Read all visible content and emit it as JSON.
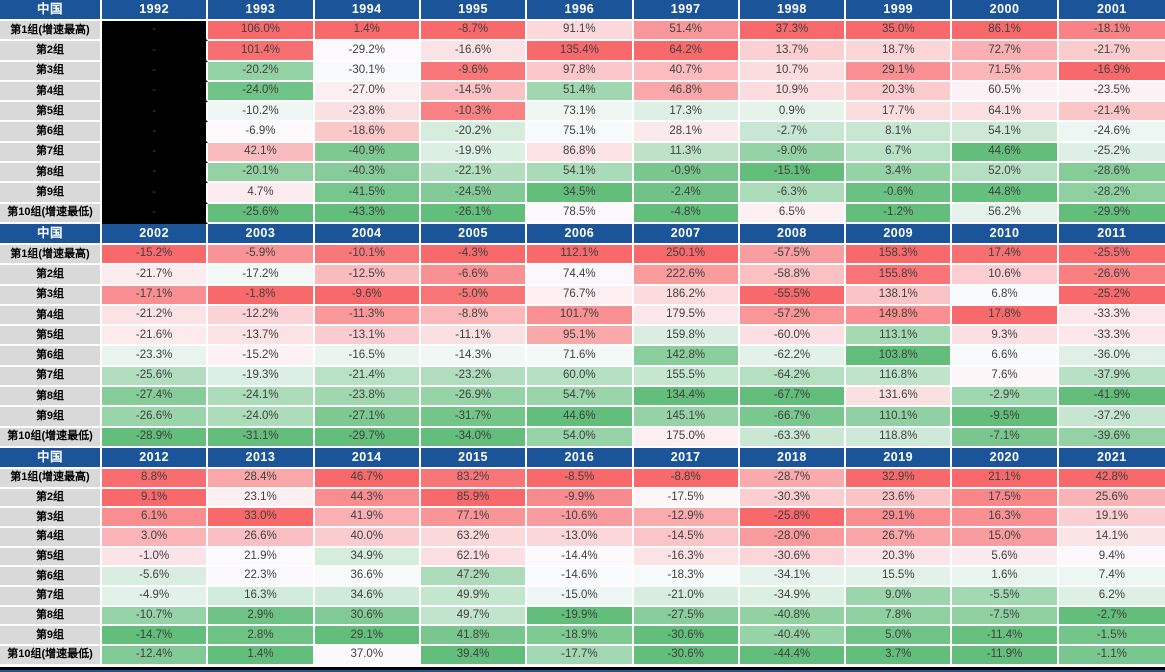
{
  "colors": {
    "header_bg": "#1C5499",
    "header_text": "#FFFFFF",
    "label_bg": "#D9D9D9",
    "label_text": "#000000",
    "grid_line": "#FFFFFF",
    "value_text": "#404040",
    "null_cell_bg": "#000000",
    "null_cell_text": "#4A4A4A",
    "bottom_edge": "#000000",
    "scale_max_red": "#F8696B",
    "scale_mid_white": "#FCFCFF",
    "scale_min_green": "#63BE7B"
  },
  "chart_data": {
    "type": "heatmap",
    "region_header": "中国",
    "unit": "%",
    "null_placeholder": "-",
    "color_scale": {
      "min_color": "#63BE7B",
      "mid_color": "#FCFCFF",
      "max_color": "#F8696B",
      "midpoint": "50th-percentile per column",
      "scope": "per column within each decade section"
    },
    "row_labels": [
      "第1组(增速最高)",
      "第2组",
      "第3组",
      "第4组",
      "第5组",
      "第6组",
      "第7组",
      "第8组",
      "第9组",
      "第10组(增速最低)"
    ],
    "sections": [
      {
        "years": [
          "1992",
          "1993",
          "1994",
          "1995",
          "1996",
          "1997",
          "1998",
          "1999",
          "2000",
          "2001"
        ],
        "values": [
          [
            null,
            106.0,
            1.4,
            -8.7,
            91.1,
            51.4,
            37.3,
            35.0,
            86.1,
            -18.1
          ],
          [
            null,
            101.4,
            -29.2,
            -16.6,
            135.4,
            64.2,
            13.7,
            18.7,
            72.7,
            -21.7
          ],
          [
            null,
            -20.2,
            -30.1,
            -9.6,
            97.8,
            40.7,
            10.7,
            29.1,
            71.5,
            -16.9
          ],
          [
            null,
            -24.0,
            -27.0,
            -14.5,
            51.4,
            46.8,
            10.9,
            20.3,
            60.5,
            -23.5
          ],
          [
            null,
            -10.2,
            -23.8,
            -10.3,
            73.1,
            17.3,
            0.9,
            17.7,
            64.1,
            -21.4
          ],
          [
            null,
            -6.9,
            -18.6,
            -20.2,
            75.1,
            28.1,
            -2.7,
            8.1,
            54.1,
            -24.6
          ],
          [
            null,
            42.1,
            -40.9,
            -19.9,
            86.8,
            11.3,
            -9.0,
            6.7,
            44.6,
            -25.2
          ],
          [
            null,
            -20.1,
            -40.3,
            -22.1,
            54.1,
            -0.9,
            -15.1,
            3.4,
            52.0,
            -28.6
          ],
          [
            null,
            4.7,
            -41.5,
            -24.5,
            34.5,
            -2.4,
            -6.3,
            -0.6,
            44.8,
            -28.2
          ],
          [
            null,
            -25.6,
            -43.3,
            -26.1,
            78.5,
            -4.8,
            6.5,
            -1.2,
            56.2,
            -29.9
          ]
        ]
      },
      {
        "years": [
          "2002",
          "2003",
          "2004",
          "2005",
          "2006",
          "2007",
          "2008",
          "2009",
          "2010",
          "2011"
        ],
        "values": [
          [
            -15.2,
            -5.9,
            -10.1,
            -4.3,
            112.1,
            250.1,
            -57.5,
            158.3,
            17.4,
            -25.5
          ],
          [
            -21.7,
            -17.2,
            -12.5,
            -6.6,
            74.4,
            222.6,
            -58.8,
            155.8,
            10.6,
            -26.6
          ],
          [
            -17.1,
            -1.8,
            -9.6,
            -5.0,
            76.7,
            186.2,
            -55.5,
            138.1,
            6.8,
            -25.2
          ],
          [
            -21.2,
            -12.2,
            -11.3,
            -8.8,
            101.7,
            179.5,
            -57.2,
            149.8,
            17.8,
            -33.3
          ],
          [
            -21.6,
            -13.7,
            -13.1,
            -11.1,
            95.1,
            159.8,
            -60.0,
            113.1,
            9.3,
            -33.3
          ],
          [
            -23.3,
            -15.2,
            -16.5,
            -14.3,
            71.6,
            142.8,
            -62.2,
            103.8,
            6.6,
            -36.0
          ],
          [
            -25.6,
            -19.3,
            -21.4,
            -23.2,
            60.0,
            155.5,
            -64.2,
            116.8,
            7.6,
            -37.9
          ],
          [
            -27.4,
            -24.1,
            -23.8,
            -26.9,
            54.7,
            134.4,
            -67.7,
            131.6,
            -2.9,
            -41.9
          ],
          [
            -26.6,
            -24.0,
            -27.1,
            -31.7,
            44.6,
            145.1,
            -66.7,
            110.1,
            -9.5,
            -37.2
          ],
          [
            -28.9,
            -31.1,
            -29.7,
            -34.0,
            54.0,
            175.0,
            -63.3,
            118.8,
            -7.1,
            -39.6
          ]
        ]
      },
      {
        "years": [
          "2012",
          "2013",
          "2014",
          "2015",
          "2016",
          "2017",
          "2018",
          "2019",
          "2020",
          "2021"
        ],
        "values": [
          [
            8.8,
            28.4,
            46.7,
            83.2,
            -8.5,
            -8.8,
            -28.7,
            32.9,
            21.1,
            42.8
          ],
          [
            9.1,
            23.1,
            44.3,
            85.9,
            -9.9,
            -17.5,
            -30.3,
            23.6,
            17.5,
            25.6
          ],
          [
            6.1,
            33.0,
            41.9,
            77.1,
            -10.6,
            -12.9,
            -25.8,
            29.1,
            16.3,
            19.1
          ],
          [
            3.0,
            26.6,
            40.0,
            63.2,
            -13.0,
            -14.5,
            -28.0,
            26.7,
            15.0,
            14.1
          ],
          [
            -1.0,
            21.9,
            34.9,
            62.1,
            -14.4,
            -16.3,
            -30.6,
            20.3,
            5.6,
            9.4
          ],
          [
            -5.6,
            22.3,
            36.6,
            47.2,
            -14.6,
            -18.3,
            -34.1,
            15.5,
            1.6,
            7.4
          ],
          [
            -4.9,
            16.3,
            34.6,
            49.9,
            -15.0,
            -21.0,
            -34.9,
            9.0,
            -5.5,
            6.2
          ],
          [
            -10.7,
            2.9,
            30.6,
            49.7,
            -19.9,
            -27.5,
            -40.8,
            7.8,
            -7.5,
            -2.7
          ],
          [
            -14.7,
            2.8,
            29.1,
            41.8,
            -18.9,
            -30.6,
            -40.4,
            5.0,
            -11.4,
            -1.5
          ],
          [
            -12.4,
            1.4,
            37.0,
            39.4,
            -17.7,
            -30.6,
            -44.4,
            3.7,
            -11.9,
            -1.1
          ]
        ]
      }
    ]
  }
}
